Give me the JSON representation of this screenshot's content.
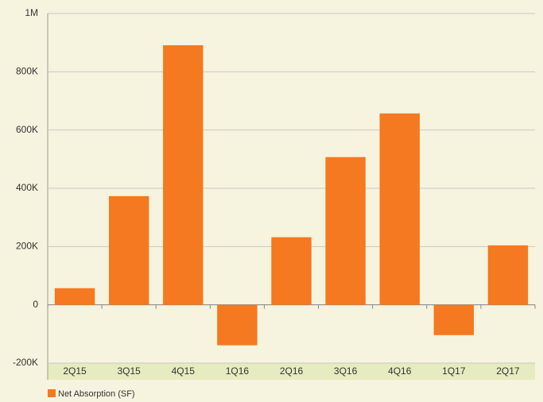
{
  "chart_data": {
    "type": "bar",
    "categories": [
      "2Q15",
      "3Q15",
      "4Q15",
      "1Q16",
      "2Q16",
      "3Q16",
      "4Q16",
      "1Q17",
      "2Q17"
    ],
    "series": [
      {
        "name": "Net Absorption (SF)",
        "color": "#f47920",
        "values": [
          57000,
          373000,
          891000,
          -139000,
          232000,
          507000,
          657000,
          -104000,
          204000
        ]
      }
    ],
    "ylim": [
      -200000,
      1000000
    ],
    "yticks": [
      {
        "value": -200000,
        "label": "-200K"
      },
      0,
      {
        "value": 200000,
        "label": "200K"
      },
      {
        "value": 400000,
        "label": "400K"
      },
      {
        "value": 600000,
        "label": "600K"
      },
      {
        "value": 800000,
        "label": "800K"
      },
      {
        "value": 1000000,
        "label": "1M"
      }
    ],
    "grid": true
  }
}
